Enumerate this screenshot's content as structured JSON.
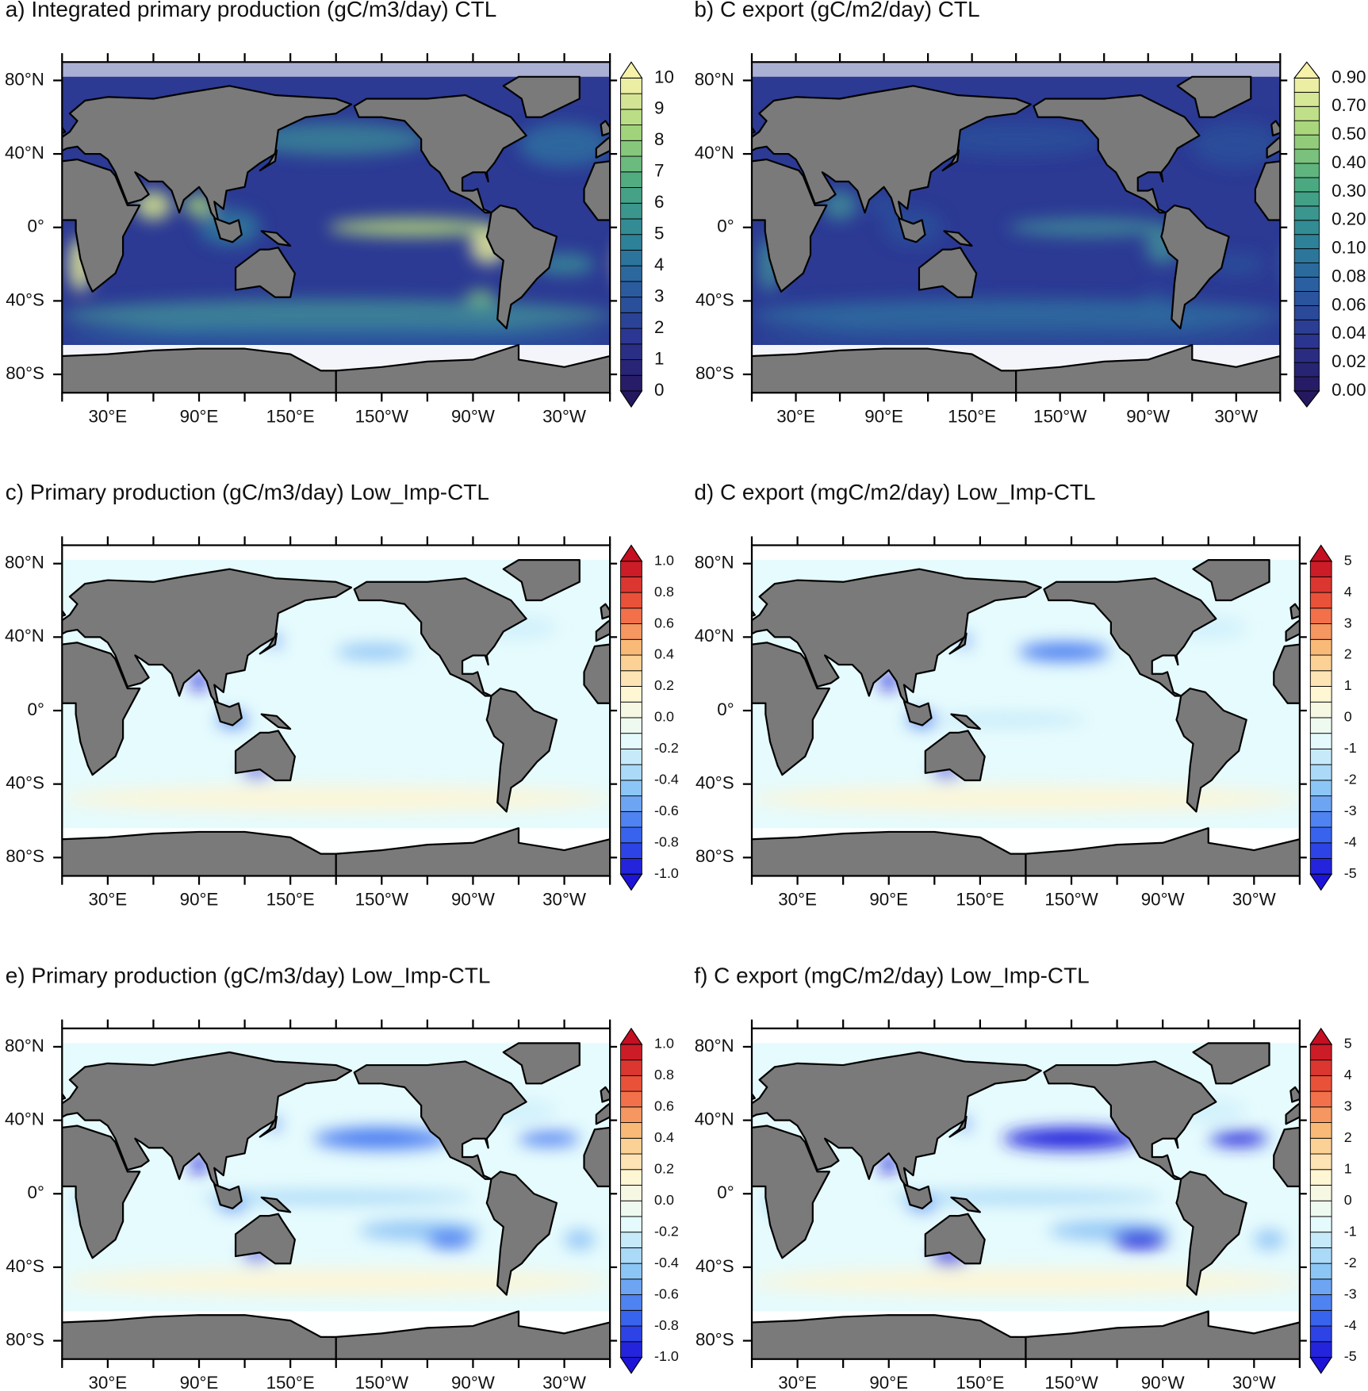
{
  "panels": [
    {
      "title": "a) Integrated primary production (gC/m3/day) CTL",
      "lat_labels": [
        "80°N",
        "40°N",
        "0°",
        "40°S",
        "80°S"
      ],
      "lon_labels": [
        "30°E",
        "90°E",
        "150°E",
        "150°W",
        "90°W",
        "30°W"
      ],
      "colorbar_labels": [
        "0",
        "1",
        "2",
        "3",
        "4",
        "5",
        "6",
        "7",
        "8",
        "9",
        "10"
      ]
    },
    {
      "title": "b) C export (gC/m2/day) CTL",
      "lat_labels": [
        "80°N",
        "40°N",
        "0°",
        "40°S",
        "80°S"
      ],
      "lon_labels": [
        "30°E",
        "90°E",
        "150°E",
        "150°W",
        "90°W",
        "30°W"
      ],
      "colorbar_labels": [
        "0.00",
        "0.02",
        "0.04",
        "0.06",
        "0.08",
        "0.10",
        "0.20",
        "0.30",
        "0.40",
        "0.50",
        "0.70",
        "0.90"
      ]
    },
    {
      "title": "c) Primary production (gC/m3/day) Low_Imp-CTL",
      "lat_labels": [
        "80°N",
        "40°N",
        "0°",
        "40°S",
        "80°S"
      ],
      "lon_labels": [
        "30°E",
        "90°E",
        "150°E",
        "150°W",
        "90°W",
        "30°W"
      ],
      "colorbar_labels": [
        "-1.0",
        "-0.8",
        "-0.6",
        "-0.4",
        "-0.2",
        "0.0",
        "0.2",
        "0.4",
        "0.6",
        "0.8",
        "1.0"
      ]
    },
    {
      "title": "d) C export (mgC/m2/day) Low_Imp-CTL",
      "lat_labels": [
        "80°N",
        "40°N",
        "0°",
        "40°S",
        "80°S"
      ],
      "lon_labels": [
        "30°E",
        "90°E",
        "150°E",
        "150°W",
        "90°W",
        "30°W"
      ],
      "colorbar_labels": [
        "-5",
        "-4",
        "-3",
        "-2",
        "-1",
        "0",
        "1",
        "2",
        "3",
        "4",
        "5"
      ]
    },
    {
      "title": "e) Primary production (gC/m3/day) Low_Imp-CTL",
      "lat_labels": [
        "80°N",
        "40°N",
        "0°",
        "40°S",
        "80°S"
      ],
      "lon_labels": [
        "30°E",
        "90°E",
        "150°E",
        "150°W",
        "90°W",
        "30°W"
      ],
      "colorbar_labels": [
        "-1.0",
        "-0.8",
        "-0.6",
        "-0.4",
        "-0.2",
        "0.0",
        "0.2",
        "0.4",
        "0.6",
        "0.8",
        "1.0"
      ]
    },
    {
      "title": "f) C export (mgC/m2/day) Low_Imp-CTL",
      "lat_labels": [
        "80°N",
        "40°N",
        "0°",
        "40°S",
        "80°S"
      ],
      "lon_labels": [
        "30°E",
        "90°E",
        "150°E",
        "150°W",
        "90°W",
        "30°W"
      ],
      "colorbar_labels": [
        "-5",
        "-4",
        "-3",
        "-2",
        "-1",
        "0",
        "1",
        "2",
        "3",
        "4",
        "5"
      ]
    }
  ]
}
